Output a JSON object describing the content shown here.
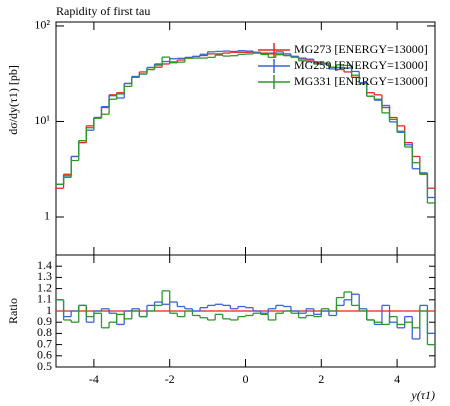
{
  "chart_data": [
    {
      "type": "histogram",
      "title": "Rapidity of first tau",
      "ylabel": "dσ/dy(τ1) [pb]",
      "log_y": true,
      "xlim": [
        -5,
        5
      ],
      "ylim": [
        0.4,
        110
      ],
      "yticks": [
        1,
        {
          "value": 10,
          "label": "10¹"
        },
        {
          "value": 100,
          "label": "10²"
        }
      ],
      "legend": "upper right",
      "bins": [
        -5,
        -4.8,
        -4.6,
        -4.4,
        -4.2,
        -4,
        -3.8,
        -3.6,
        -3.4,
        -3.2,
        -3,
        -2.8,
        -2.6,
        -2.4,
        -2.2,
        -2,
        -1.8,
        -1.6,
        -1.4,
        -1.2,
        -1,
        -0.8,
        -0.6,
        -0.4,
        -0.2,
        0,
        0.2,
        0.4,
        0.6,
        0.8,
        1,
        1.2,
        1.4,
        1.6,
        1.8,
        2,
        2.2,
        2.4,
        2.6,
        2.8,
        3,
        3.2,
        3.4,
        3.6,
        3.8,
        4,
        4.2,
        4.4,
        4.6,
        4.8,
        5
      ],
      "series": [
        {
          "name": "MG273 [ENERGY=13000]",
          "color": "#e8281e",
          "values": [
            2.0,
            2.8,
            4.3,
            6.0,
            9.0,
            11,
            14,
            19,
            20,
            25,
            29,
            33,
            35,
            37,
            40,
            42,
            44,
            46,
            48,
            49,
            51,
            51,
            52,
            53,
            53,
            53,
            53,
            52,
            51,
            51,
            49,
            48,
            46,
            44,
            42,
            40,
            37,
            35,
            33,
            29,
            25,
            20,
            19,
            14,
            11,
            9.0,
            6.0,
            4.3,
            2.8,
            2.0
          ]
        },
        {
          "name": "MG259 [ENERGY=13000]",
          "color": "#3b64d8",
          "values": [
            2.2,
            2.7,
            4.3,
            6.3,
            8.1,
            11,
            14.3,
            18.6,
            17.6,
            25,
            29.6,
            31.4,
            36.8,
            40,
            42.4,
            45.4,
            45.8,
            46.9,
            48,
            50.5,
            53.6,
            54.1,
            54.6,
            54.1,
            55.1,
            54.6,
            53,
            51,
            52,
            53.6,
            51,
            48,
            45.1,
            44.9,
            40.7,
            40,
            35.5,
            36.8,
            36.3,
            33.4,
            25.5,
            18.4,
            16.7,
            14.7,
            9.9,
            7.7,
            5.7,
            3.2,
            2.9,
            1.6
          ]
        },
        {
          "name": "MG331 [ENERGY=13000]",
          "color": "#2a9a2a",
          "values": [
            2.2,
            2.6,
            3.9,
            6.3,
            8.6,
            10.8,
            11.9,
            17.1,
            19.4,
            23.3,
            29,
            31.4,
            35,
            38.9,
            47.2,
            41.2,
            41.8,
            46,
            46.1,
            46.1,
            46.9,
            49.5,
            48.4,
            48.8,
            50.4,
            50.9,
            51.9,
            50.4,
            46.9,
            50,
            49,
            47,
            43.2,
            42.2,
            39.9,
            40.8,
            37,
            39.2,
            38.6,
            30.5,
            25,
            18.4,
            17.1,
            12.3,
            10.5,
            7.9,
            5.4,
            3.7,
            2.8,
            1.4
          ]
        }
      ]
    },
    {
      "type": "ratio",
      "ylabel": "Ratio",
      "xlabel": "y(τ1)",
      "xticks": [
        -4,
        -2,
        0,
        2,
        4
      ],
      "ylim": [
        0.5,
        1.5
      ],
      "yticks": [
        0.5,
        0.6,
        0.7,
        0.8,
        0.9,
        1,
        1.1,
        1.2,
        1.3,
        1.4
      ],
      "series": [
        {
          "color": "#e8281e",
          "values": [
            1,
            1,
            1,
            1,
            1,
            1,
            1,
            1,
            1,
            1,
            1,
            1,
            1,
            1,
            1,
            1,
            1,
            1,
            1,
            1,
            1,
            1,
            1,
            1,
            1,
            1,
            1,
            1,
            1,
            1,
            1,
            1,
            1,
            1,
            1,
            1,
            1,
            1,
            1,
            1,
            1,
            1,
            1,
            1,
            1,
            1,
            1,
            1,
            1,
            1
          ]
        },
        {
          "color": "#3b64d8",
          "values": [
            1.1,
            0.95,
            1.0,
            1.05,
            0.9,
            1.0,
            1.02,
            0.98,
            0.88,
            1.0,
            1.02,
            0.95,
            1.05,
            1.08,
            1.06,
            1.08,
            1.04,
            1.02,
            1.0,
            1.03,
            1.05,
            1.06,
            1.05,
            1.02,
            1.04,
            1.03,
            1.0,
            0.98,
            1.02,
            1.05,
            1.04,
            1.0,
            0.98,
            1.02,
            0.97,
            1.0,
            0.96,
            1.05,
            1.1,
            1.15,
            1.02,
            0.92,
            0.88,
            1.05,
            0.9,
            0.85,
            0.95,
            0.75,
            1.05,
            0.8
          ]
        },
        {
          "color": "#2a9a2a",
          "values": [
            1.1,
            0.92,
            0.9,
            1.05,
            0.95,
            0.98,
            0.85,
            0.9,
            0.97,
            0.93,
            1.0,
            0.95,
            1.0,
            1.05,
            1.18,
            0.98,
            0.95,
            1.0,
            0.96,
            0.94,
            0.92,
            0.97,
            0.93,
            0.92,
            0.95,
            0.96,
            0.98,
            0.97,
            0.92,
            0.98,
            1.0,
            0.98,
            0.94,
            0.96,
            0.95,
            1.02,
            1.0,
            1.12,
            1.17,
            1.05,
            1.0,
            0.92,
            0.9,
            0.88,
            0.95,
            0.88,
            0.9,
            0.85,
            1.0,
            0.7
          ]
        }
      ]
    }
  ]
}
